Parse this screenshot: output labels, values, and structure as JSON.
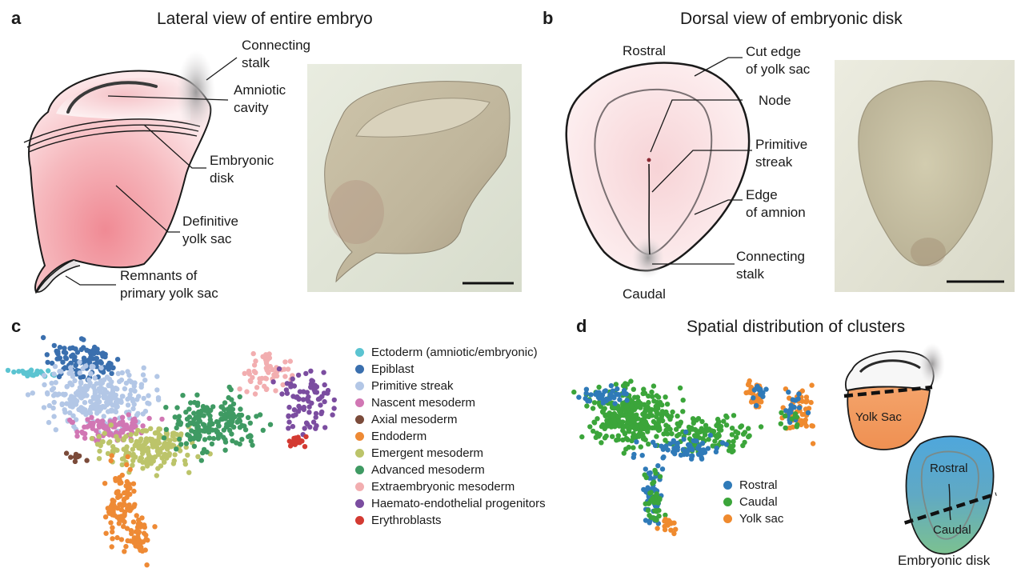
{
  "panels": {
    "a": {
      "letter": "a",
      "title": "Lateral view of entire embryo",
      "labels": {
        "connecting_stalk": "Connecting\nstalk",
        "amniotic_cavity": "Amniotic\ncavity",
        "embryonic_disk": "Embryonic\ndisk",
        "definitive_yolk_sac": "Definitive\nyolk sac",
        "remnants": "Remnants of\nprimary yolk sac"
      }
    },
    "b": {
      "letter": "b",
      "title": "Dorsal view of embryonic disk",
      "labels": {
        "rostral": "Rostral",
        "caudal": "Caudal",
        "cut_edge": "Cut edge\nof yolk sac",
        "node": "Node",
        "primitive_streak": "Primitive\nstreak",
        "edge_amnion": "Edge\nof amnion",
        "connecting_stalk": "Connecting\nstalk"
      }
    },
    "c": {
      "letter": "c",
      "legend": [
        {
          "label": "Ectoderm (amniotic/embryonic)",
          "color": "#5bc4d1"
        },
        {
          "label": "Epiblast",
          "color": "#3a6fae"
        },
        {
          "label": "Primitive streak",
          "color": "#b3c7e6"
        },
        {
          "label": "Nascent mesoderm",
          "color": "#d177b4"
        },
        {
          "label": "Axial mesoderm",
          "color": "#7b4b3a"
        },
        {
          "label": "Endoderm",
          "color": "#ee8a35"
        },
        {
          "label": "Emergent mesoderm",
          "color": "#bcc46a"
        },
        {
          "label": "Advanced mesoderm",
          "color": "#3f9a63"
        },
        {
          "label": "Extraembryonic mesoderm",
          "color": "#f2aeb0"
        },
        {
          "label": "Haemato-endothelial progenitors",
          "color": "#7b4da0"
        },
        {
          "label": "Erythroblasts",
          "color": "#d33a32"
        }
      ]
    },
    "d": {
      "letter": "d",
      "title": "Spatial distribution of clusters",
      "legend": [
        {
          "label": "Rostral",
          "color": "#2f7ab8"
        },
        {
          "label": "Caudal",
          "color": "#3ba53a"
        },
        {
          "label": "Yolk sac",
          "color": "#ef8a2e"
        }
      ],
      "yolk_sac_label": "Yolk Sac",
      "rostral_label": "Rostral",
      "caudal_label": "Caudal",
      "embryonic_disk_label": "Embryonic disk"
    }
  }
}
